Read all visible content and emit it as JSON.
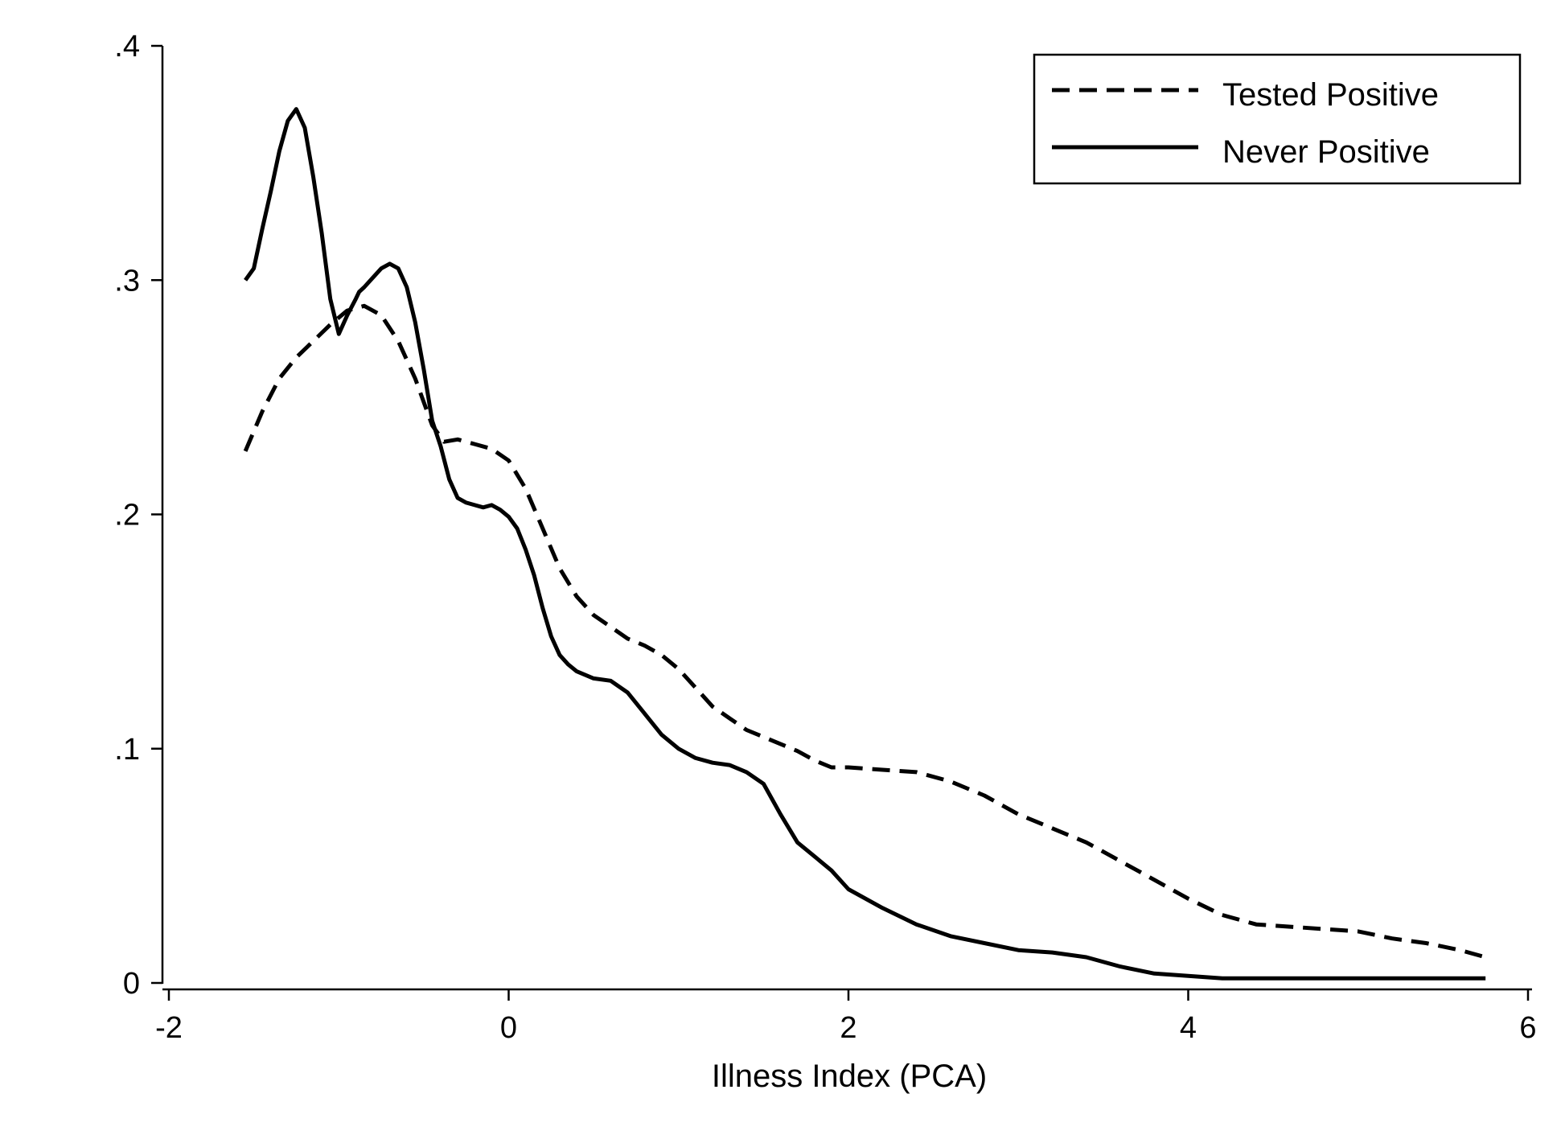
{
  "chart_data": {
    "type": "line",
    "title": "",
    "xlabel": "Illness Index (PCA)",
    "ylabel": "",
    "xlim": [
      -2,
      6
    ],
    "ylim": [
      0,
      0.4
    ],
    "xticks": [
      -2,
      0,
      2,
      4,
      6
    ],
    "xtick_labels": [
      "-2",
      "0",
      "2",
      "4",
      "6"
    ],
    "yticks": [
      0,
      0.1,
      0.2,
      0.3,
      0.4
    ],
    "ytick_labels": [
      "0",
      ".1",
      ".2",
      ".3",
      ".4"
    ],
    "grid": false,
    "legend_position": "top-right",
    "series": [
      {
        "name": "Tested Positive",
        "style": "dashed",
        "color": "#000000",
        "x": [
          -1.55,
          -1.45,
          -1.35,
          -1.25,
          -1.15,
          -1.05,
          -0.95,
          -0.85,
          -0.75,
          -0.65,
          -0.55,
          -0.45,
          -0.38,
          -0.3,
          -0.2,
          -0.1,
          0.0,
          0.1,
          0.2,
          0.3,
          0.4,
          0.5,
          0.6,
          0.7,
          0.8,
          0.9,
          1.0,
          1.1,
          1.2,
          1.3,
          1.4,
          1.5,
          1.6,
          1.7,
          1.8,
          1.9,
          2.0,
          2.2,
          2.4,
          2.6,
          2.8,
          3.0,
          3.2,
          3.4,
          3.6,
          3.8,
          4.0,
          4.2,
          4.4,
          4.6,
          4.8,
          5.0,
          5.2,
          5.4,
          5.6,
          5.75
        ],
        "y": [
          0.227,
          0.244,
          0.258,
          0.267,
          0.274,
          0.281,
          0.287,
          0.289,
          0.285,
          0.274,
          0.258,
          0.238,
          0.231,
          0.232,
          0.23,
          0.228,
          0.223,
          0.211,
          0.194,
          0.177,
          0.165,
          0.157,
          0.152,
          0.147,
          0.144,
          0.14,
          0.134,
          0.126,
          0.118,
          0.113,
          0.108,
          0.105,
          0.102,
          0.099,
          0.095,
          0.092,
          0.092,
          0.091,
          0.09,
          0.086,
          0.08,
          0.072,
          0.066,
          0.06,
          0.052,
          0.044,
          0.036,
          0.029,
          0.025,
          0.024,
          0.023,
          0.022,
          0.019,
          0.017,
          0.014,
          0.011
        ]
      },
      {
        "name": "Never Positive",
        "style": "solid",
        "color": "#000000",
        "x": [
          -1.55,
          -1.5,
          -1.45,
          -1.4,
          -1.35,
          -1.3,
          -1.25,
          -1.2,
          -1.15,
          -1.1,
          -1.05,
          -1.0,
          -0.95,
          -0.9,
          -0.88,
          -0.85,
          -0.8,
          -0.75,
          -0.7,
          -0.65,
          -0.6,
          -0.55,
          -0.5,
          -0.45,
          -0.4,
          -0.35,
          -0.3,
          -0.25,
          -0.2,
          -0.15,
          -0.1,
          -0.05,
          0.0,
          0.05,
          0.1,
          0.15,
          0.2,
          0.25,
          0.3,
          0.35,
          0.4,
          0.5,
          0.6,
          0.7,
          0.8,
          0.9,
          1.0,
          1.1,
          1.2,
          1.3,
          1.4,
          1.5,
          1.6,
          1.7,
          1.8,
          1.9,
          2.0,
          2.2,
          2.4,
          2.6,
          2.8,
          3.0,
          3.2,
          3.4,
          3.6,
          3.8,
          4.0,
          4.2,
          4.4,
          4.6,
          4.8,
          5.0,
          5.2,
          5.4,
          5.6,
          5.75
        ],
        "y": [
          0.3,
          0.305,
          0.322,
          0.338,
          0.355,
          0.368,
          0.373,
          0.365,
          0.344,
          0.32,
          0.292,
          0.277,
          0.285,
          0.292,
          0.295,
          0.297,
          0.301,
          0.305,
          0.307,
          0.305,
          0.297,
          0.282,
          0.262,
          0.24,
          0.229,
          0.215,
          0.207,
          0.205,
          0.204,
          0.203,
          0.204,
          0.202,
          0.199,
          0.194,
          0.185,
          0.174,
          0.16,
          0.148,
          0.14,
          0.136,
          0.133,
          0.13,
          0.129,
          0.124,
          0.115,
          0.106,
          0.1,
          0.096,
          0.094,
          0.093,
          0.09,
          0.085,
          0.072,
          0.06,
          0.054,
          0.048,
          0.04,
          0.032,
          0.025,
          0.02,
          0.017,
          0.014,
          0.013,
          0.011,
          0.007,
          0.004,
          0.003,
          0.002,
          0.002,
          0.002,
          0.002,
          0.002,
          0.002,
          0.002,
          0.002,
          0.002
        ]
      }
    ]
  }
}
